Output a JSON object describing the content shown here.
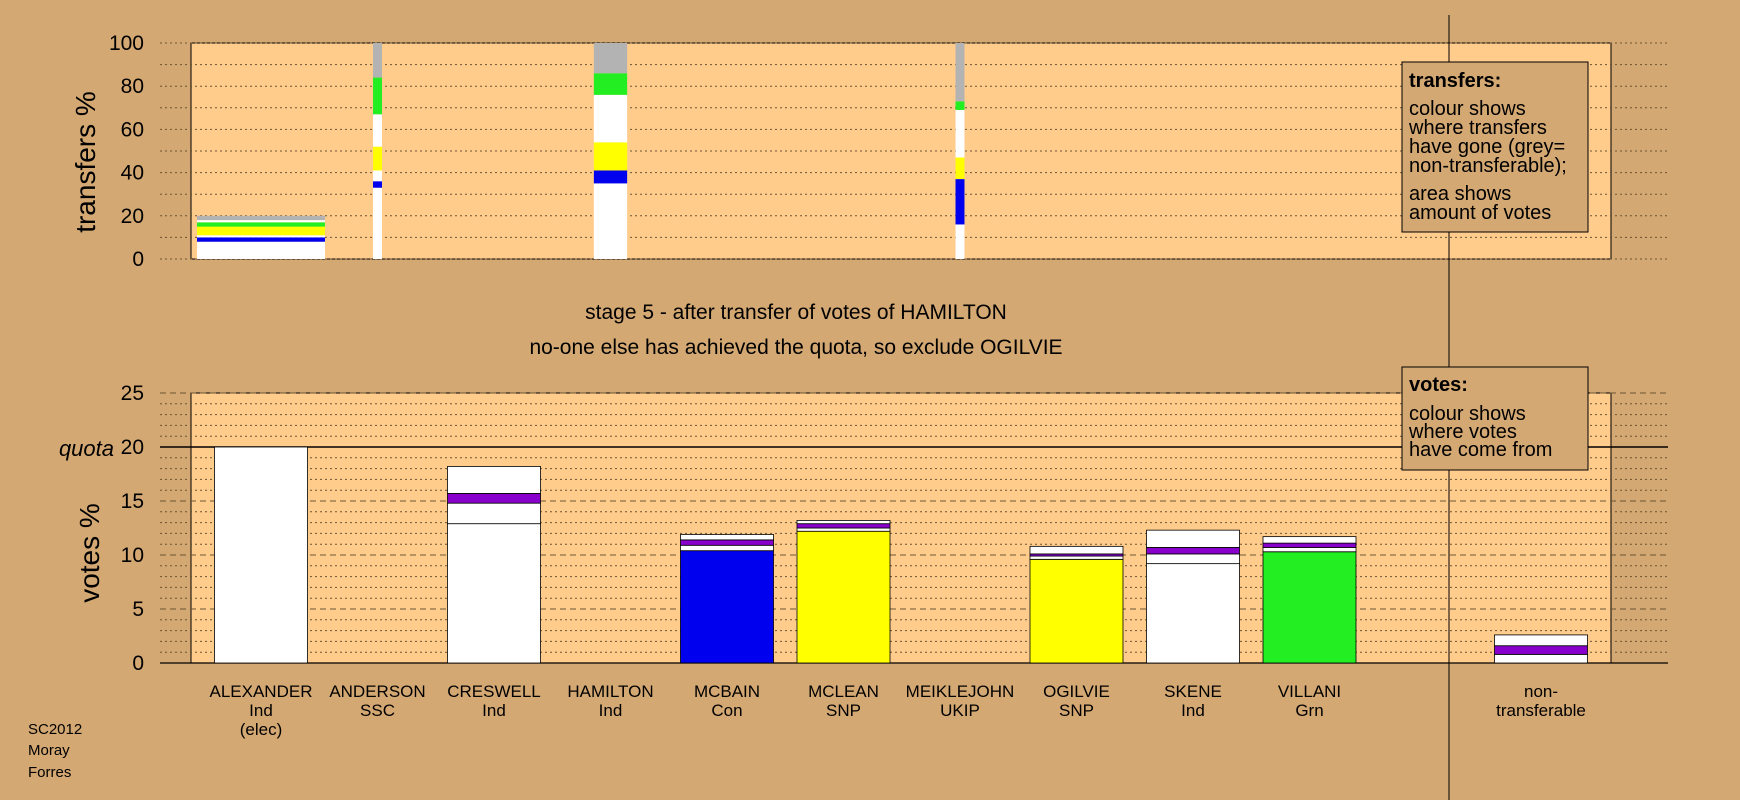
{
  "colors": {
    "background": "#d4a873",
    "plot_area": "#ffcc8c",
    "Ind": "#ffffff",
    "Con": "#0000ee",
    "SNP": "#ffff00",
    "Grn": "#22ee22",
    "UKIP": "#8800cc",
    "non_transferable": "#b3b3b3"
  },
  "stage": {
    "line1": "stage 5 - after transfer of votes of HAMILTON",
    "line2": "no-one else has achieved the quota, so exclude OGILVIE"
  },
  "meta": [
    "SC2012",
    "Moray",
    "Forres"
  ],
  "legend_transfers": {
    "title": "transfers:",
    "lines1": [
      "colour shows",
      "where transfers",
      "have gone (grey=",
      "non-transferable);"
    ],
    "lines2": [
      "area shows",
      "amount of votes"
    ]
  },
  "legend_votes": {
    "title": "votes:",
    "lines": [
      "colour shows",
      "where votes",
      "have come from"
    ]
  },
  "chart_data": [
    {
      "type": "bar",
      "title": "",
      "ylabel": "transfers %",
      "ylim": [
        0,
        100
      ],
      "yticks": [
        0,
        20,
        40,
        60,
        80,
        100
      ],
      "description": "stacked transfer bars; width proportional to amount of votes transferred",
      "bars": [
        {
          "candidate": "ALEXANDER",
          "width_share": 1.0,
          "segments": [
            {
              "color": "Ind",
              "from": 0,
              "to": 8
            },
            {
              "color": "Con",
              "from": 8,
              "to": 10
            },
            {
              "color": "Ind",
              "from": 10,
              "to": 11
            },
            {
              "color": "SNP",
              "from": 11,
              "to": 15
            },
            {
              "color": "Grn",
              "from": 15,
              "to": 17
            },
            {
              "color": "Ind",
              "from": 17,
              "to": 18
            },
            {
              "color": "non_transferable",
              "from": 18,
              "to": 20
            }
          ]
        },
        {
          "candidate": "ANDERSON",
          "width_share": 0.07,
          "segments": [
            {
              "color": "Ind",
              "from": 0,
              "to": 33
            },
            {
              "color": "Con",
              "from": 33,
              "to": 36
            },
            {
              "color": "Ind",
              "from": 36,
              "to": 41
            },
            {
              "color": "SNP",
              "from": 41,
              "to": 52
            },
            {
              "color": "Ind",
              "from": 52,
              "to": 67
            },
            {
              "color": "Grn",
              "from": 67,
              "to": 84
            },
            {
              "color": "non_transferable",
              "from": 84,
              "to": 100
            }
          ]
        },
        {
          "candidate": "HAMILTON",
          "width_share": 0.26,
          "segments": [
            {
              "color": "Ind",
              "from": 0,
              "to": 35
            },
            {
              "color": "Con",
              "from": 35,
              "to": 41
            },
            {
              "color": "SNP",
              "from": 41,
              "to": 54
            },
            {
              "color": "Ind",
              "from": 54,
              "to": 76
            },
            {
              "color": "Grn",
              "from": 76,
              "to": 86
            },
            {
              "color": "non_transferable",
              "from": 86,
              "to": 100
            }
          ]
        },
        {
          "candidate": "MEIKLEJOHN",
          "width_share": 0.07,
          "segments": [
            {
              "color": "Ind",
              "from": 0,
              "to": 16
            },
            {
              "color": "Con",
              "from": 16,
              "to": 37
            },
            {
              "color": "SNP",
              "from": 37,
              "to": 47
            },
            {
              "color": "Ind",
              "from": 47,
              "to": 69
            },
            {
              "color": "Grn",
              "from": 69,
              "to": 73
            },
            {
              "color": "non_transferable",
              "from": 73,
              "to": 100
            }
          ]
        }
      ]
    },
    {
      "type": "bar",
      "title": "",
      "ylabel": "votes %",
      "ylim": [
        0,
        25
      ],
      "yticks": [
        0,
        5,
        10,
        15,
        20,
        25
      ],
      "quota": 20,
      "quota_label": "quota",
      "candidates": [
        {
          "name": "ALEXANDER",
          "party": "Ind",
          "note": "(elec)",
          "segments": [
            {
              "color": "Ind",
              "from": 0,
              "to": 20
            }
          ]
        },
        {
          "name": "ANDERSON",
          "party": "SSC",
          "segments": []
        },
        {
          "name": "CRESWELL",
          "party": "Ind",
          "segments": [
            {
              "color": "Ind",
              "from": 0,
              "to": 12.9
            },
            {
              "color": "Ind",
              "from": 12.9,
              "to": 14.8
            },
            {
              "color": "UKIP",
              "from": 14.8,
              "to": 15.7
            },
            {
              "color": "Ind",
              "from": 15.7,
              "to": 18.2
            }
          ]
        },
        {
          "name": "HAMILTON",
          "party": "Ind",
          "segments": []
        },
        {
          "name": "MCBAIN",
          "party": "Con",
          "segments": [
            {
              "color": "Con",
              "from": 0,
              "to": 10.4
            },
            {
              "color": "Ind",
              "from": 10.4,
              "to": 10.9
            },
            {
              "color": "UKIP",
              "from": 10.9,
              "to": 11.4
            },
            {
              "color": "Ind",
              "from": 11.4,
              "to": 11.9
            }
          ]
        },
        {
          "name": "MCLEAN",
          "party": "SNP",
          "segments": [
            {
              "color": "SNP",
              "from": 0,
              "to": 12.2
            },
            {
              "color": "Ind",
              "from": 12.2,
              "to": 12.5
            },
            {
              "color": "UKIP",
              "from": 12.5,
              "to": 12.9
            },
            {
              "color": "Ind",
              "from": 12.9,
              "to": 13.2
            }
          ]
        },
        {
          "name": "MEIKLEJOHN",
          "party": "UKIP",
          "segments": []
        },
        {
          "name": "OGILVIE",
          "party": "SNP",
          "segments": [
            {
              "color": "SNP",
              "from": 0,
              "to": 9.6
            },
            {
              "color": "Ind",
              "from": 9.6,
              "to": 9.9
            },
            {
              "color": "UKIP",
              "from": 9.9,
              "to": 10.1
            },
            {
              "color": "Ind",
              "from": 10.1,
              "to": 10.8
            }
          ]
        },
        {
          "name": "SKENE",
          "party": "Ind",
          "segments": [
            {
              "color": "Ind",
              "from": 0,
              "to": 9.2
            },
            {
              "color": "Ind",
              "from": 9.2,
              "to": 10.1
            },
            {
              "color": "UKIP",
              "from": 10.1,
              "to": 10.7
            },
            {
              "color": "Ind",
              "from": 10.7,
              "to": 12.3
            }
          ]
        },
        {
          "name": "VILLANI",
          "party": "Grn",
          "segments": [
            {
              "color": "Grn",
              "from": 0,
              "to": 10.3
            },
            {
              "color": "Ind",
              "from": 10.3,
              "to": 10.7
            },
            {
              "color": "UKIP",
              "from": 10.7,
              "to": 11.1
            },
            {
              "color": "Ind",
              "from": 11.1,
              "to": 11.7
            }
          ]
        }
      ],
      "non_transferable": {
        "label_lines": [
          "non-",
          "transferable"
        ],
        "segments": [
          {
            "color": "Ind",
            "from": 0,
            "to": 0.8
          },
          {
            "color": "UKIP",
            "from": 0.8,
            "to": 1.6
          },
          {
            "color": "Ind",
            "from": 1.6,
            "to": 2.6
          }
        ]
      }
    }
  ]
}
